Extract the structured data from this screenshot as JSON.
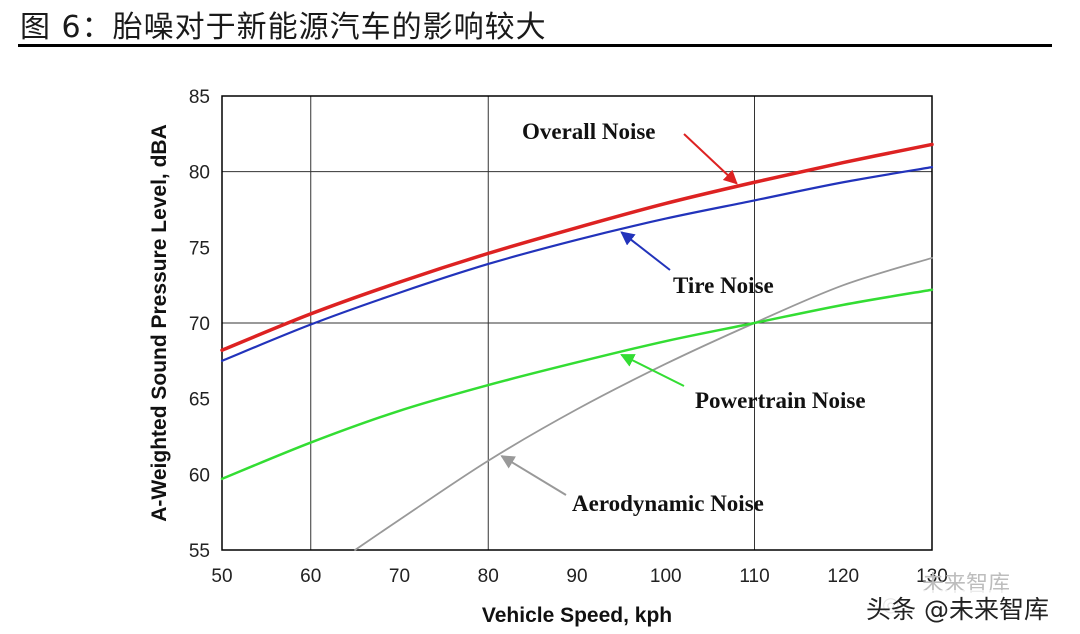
{
  "figure_title": "图 6：胎噪对于新能源汽车的影响较大",
  "watermark": {
    "main": "头条 @未来智库",
    "faint": "未来智库",
    "logo_icon": "wechat-icon"
  },
  "chart_data": {
    "type": "line",
    "title": "",
    "xlabel": "Vehicle Speed, kph",
    "ylabel": "A-Weighted Sound Pressure Level, dBA",
    "xlim": [
      50,
      130
    ],
    "ylim": [
      55,
      85
    ],
    "xticks": [
      50,
      60,
      70,
      80,
      90,
      100,
      110,
      120,
      130
    ],
    "yticks": [
      55,
      60,
      65,
      70,
      75,
      80,
      85
    ],
    "grid": true,
    "series": [
      {
        "name": "Overall Noise",
        "color": "#dd2222",
        "x": [
          50,
          60,
          70,
          80,
          90,
          100,
          110,
          120,
          130
        ],
        "y": [
          68.2,
          70.6,
          72.7,
          74.6,
          76.3,
          77.9,
          79.3,
          80.6,
          81.8
        ]
      },
      {
        "name": "Tire Noise",
        "color": "#2233bb",
        "x": [
          50,
          60,
          70,
          80,
          90,
          100,
          110,
          120,
          130
        ],
        "y": [
          67.5,
          69.9,
          72.0,
          73.9,
          75.5,
          76.9,
          78.1,
          79.3,
          80.3
        ]
      },
      {
        "name": "Powertrain Noise",
        "color": "#33dd33",
        "x": [
          50,
          60,
          70,
          80,
          90,
          100,
          110,
          120,
          130
        ],
        "y": [
          59.7,
          62.1,
          64.2,
          65.9,
          67.4,
          68.8,
          70.0,
          71.2,
          72.2
        ]
      },
      {
        "name": "Aerodynamic Noise",
        "color": "#999999",
        "x": [
          65,
          70,
          80,
          90,
          100,
          110,
          120,
          130
        ],
        "y": [
          55.0,
          57.0,
          60.9,
          64.3,
          67.3,
          70.0,
          72.5,
          74.3
        ]
      }
    ],
    "annotations": [
      {
        "text": "Overall Noise",
        "series": 0
      },
      {
        "text": "Tire Noise",
        "series": 1
      },
      {
        "text": "Powertrain Noise",
        "series": 2
      },
      {
        "text": "Aerodynamic Noise",
        "series": 3
      }
    ]
  }
}
